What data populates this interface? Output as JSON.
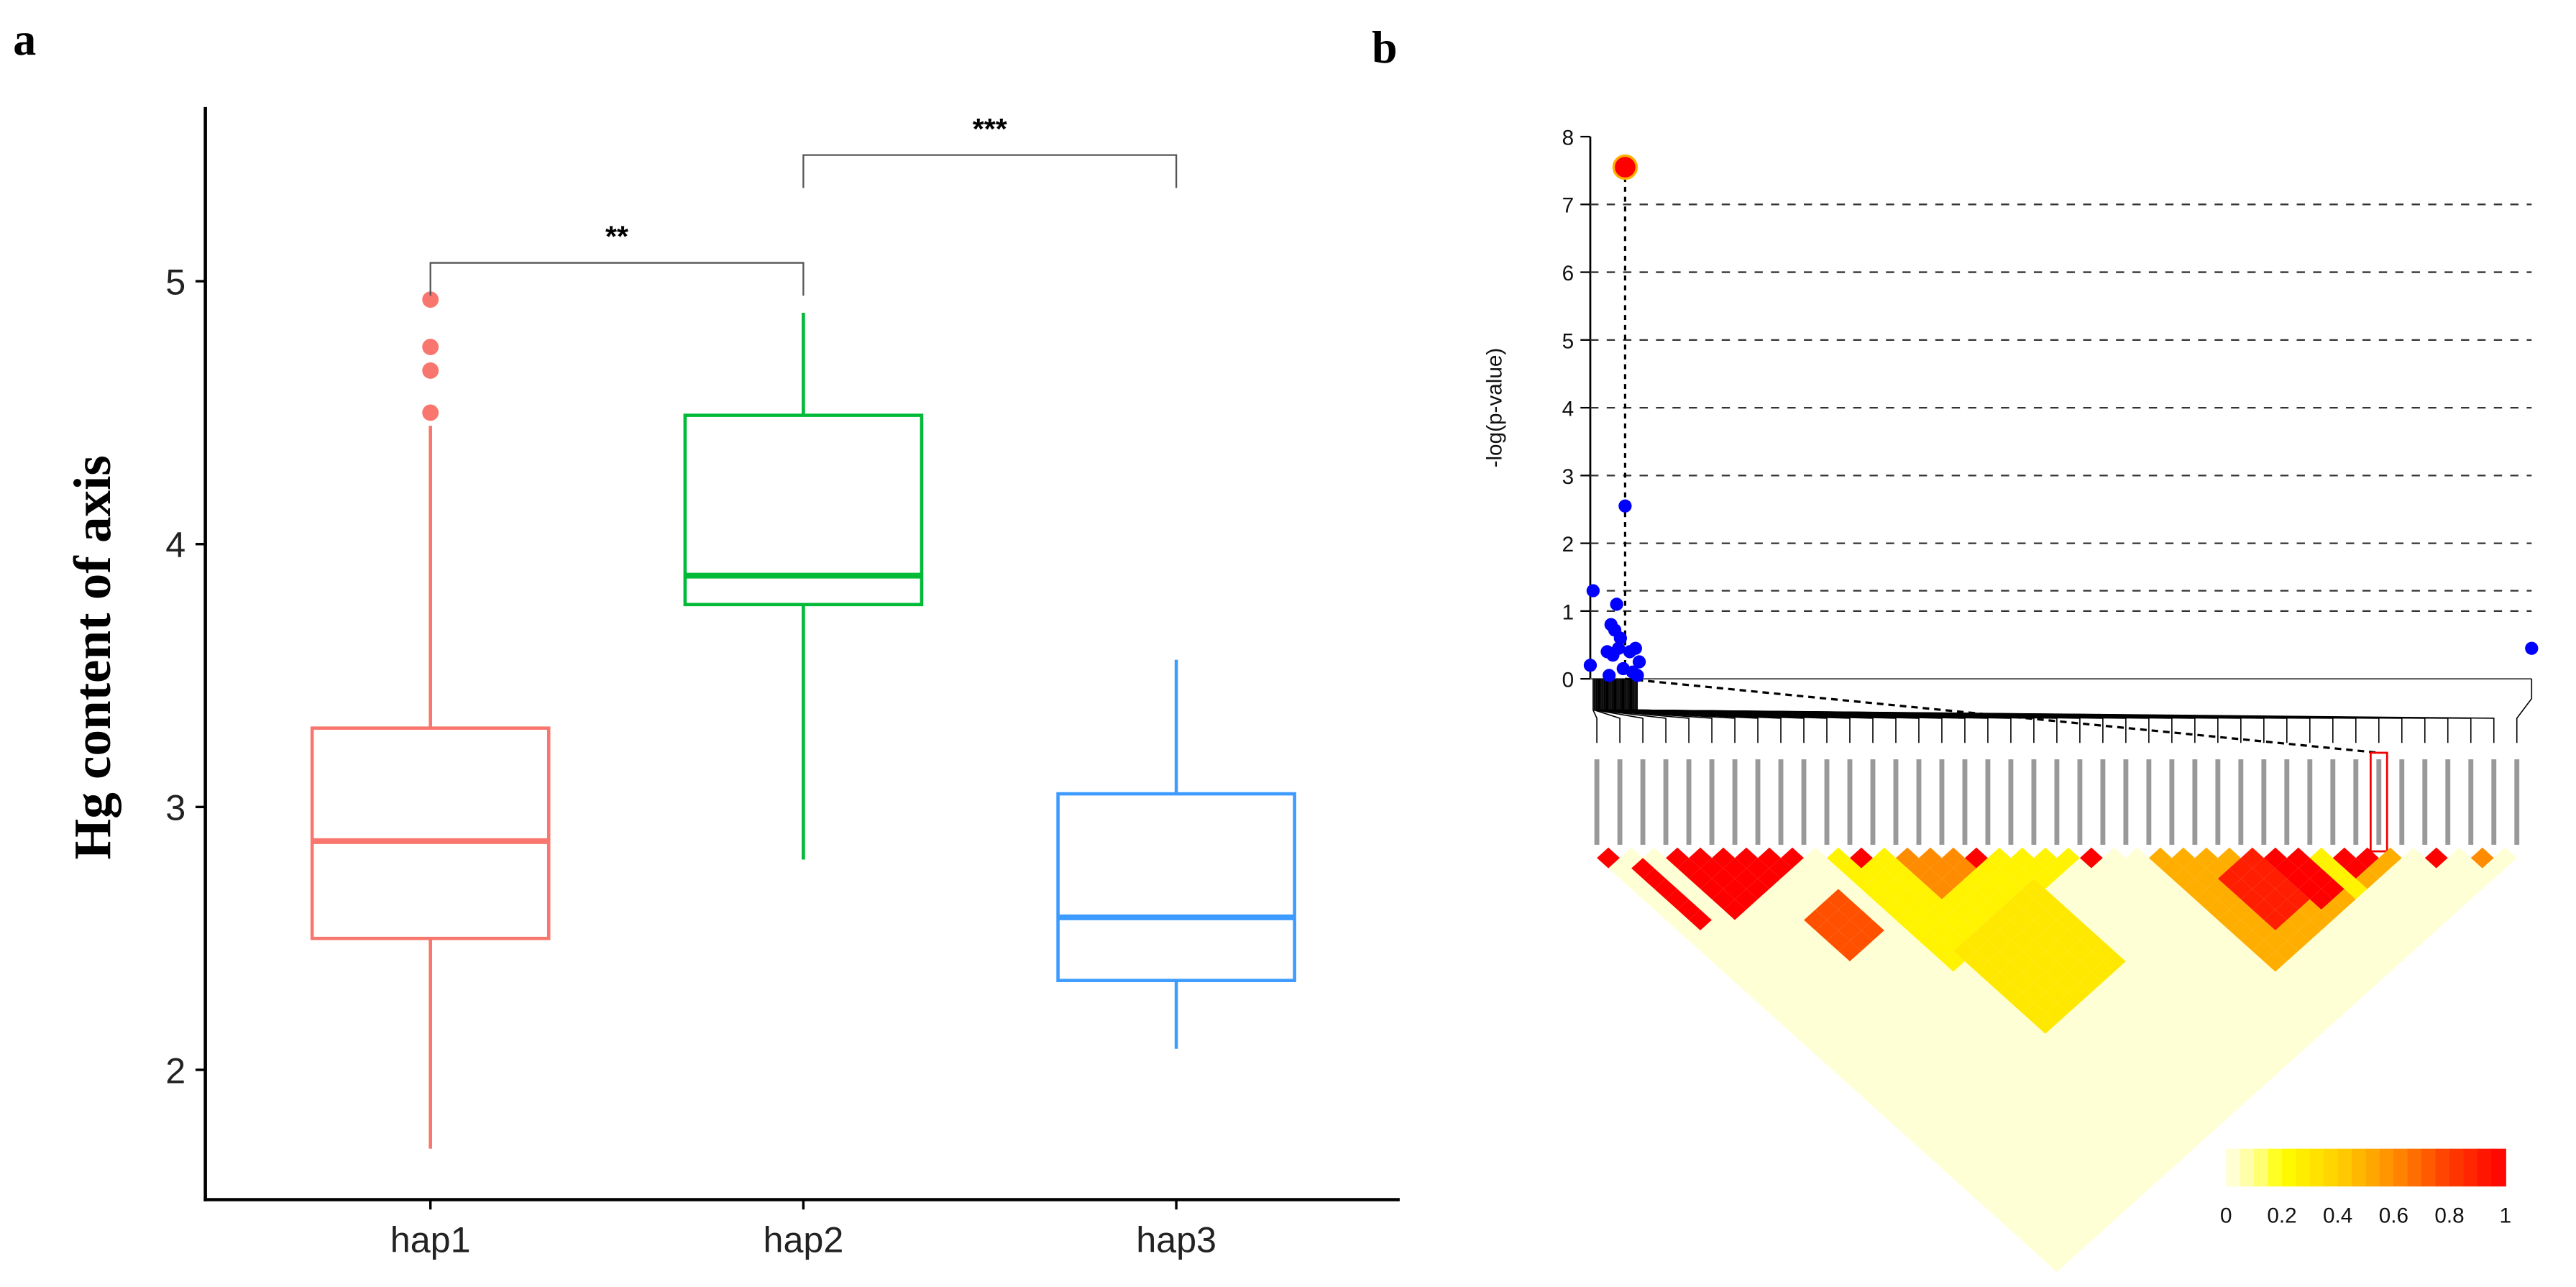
{
  "chart_data": [
    {
      "panel": "a",
      "type": "box",
      "panel_label": "a",
      "ylabel": "Hg content of axis",
      "xlabel": "",
      "ylim": [
        1.51,
        5.66
      ],
      "yticks": [
        "2",
        "3",
        "4",
        "5"
      ],
      "categories": [
        "hap1",
        "hap2",
        "hap3"
      ],
      "colors": [
        "#F8766D",
        "#00BA38",
        "#3D9BFF"
      ],
      "boxes": [
        {
          "name": "hap1",
          "min": 1.7,
          "q1": 2.5,
          "median": 2.87,
          "q3": 3.3,
          "max": 4.45,
          "outliers": [
            4.5,
            4.66,
            4.75,
            4.93
          ]
        },
        {
          "name": "hap2",
          "min": 2.8,
          "q1": 3.77,
          "median": 3.88,
          "q3": 4.49,
          "max": 4.88,
          "outliers": []
        },
        {
          "name": "hap3",
          "min": 2.08,
          "q1": 2.34,
          "median": 2.58,
          "q3": 3.05,
          "max": 3.56,
          "outliers": []
        }
      ],
      "comparisons": [
        {
          "from": "hap1",
          "to": "hap2",
          "label": "**",
          "y": 5.07
        },
        {
          "from": "hap2",
          "to": "hap3",
          "label": "***",
          "y": 5.48
        }
      ]
    },
    {
      "panel": "b",
      "type": "scatter",
      "panel_label": "b",
      "ylabel": "-log(p-value)",
      "ylim": [
        0,
        8
      ],
      "yticks": [
        "0",
        "1",
        "2",
        "3",
        "4",
        "5",
        "6",
        "7",
        "8"
      ],
      "threshold_lines": [
        1,
        1.3,
        2,
        3,
        4,
        5,
        6,
        7
      ],
      "lead_snp": {
        "pos": 3.7,
        "value": 7.55,
        "color": "#FF0000",
        "label_index": 34
      },
      "points": [
        {
          "pos": 0.0,
          "value": 0.2
        },
        {
          "pos": 0.3,
          "value": 1.3
        },
        {
          "pos": 3.7,
          "value": 2.55
        },
        {
          "pos": 2.8,
          "value": 1.1
        },
        {
          "pos": 2.2,
          "value": 0.8
        },
        {
          "pos": 2.6,
          "value": 0.72
        },
        {
          "pos": 3.2,
          "value": 0.6
        },
        {
          "pos": 1.8,
          "value": 0.4
        },
        {
          "pos": 2.4,
          "value": 0.35
        },
        {
          "pos": 3.0,
          "value": 0.45
        },
        {
          "pos": 4.2,
          "value": 0.4
        },
        {
          "pos": 4.8,
          "value": 0.45
        },
        {
          "pos": 5.2,
          "value": 0.25
        },
        {
          "pos": 4.5,
          "value": 0.1
        },
        {
          "pos": 3.5,
          "value": 0.15
        },
        {
          "pos": 2.0,
          "value": 0.05
        },
        {
          "pos": 5.0,
          "value": 0.05
        },
        {
          "pos": 100,
          "value": 0.45
        }
      ],
      "point_color": "#0000FF",
      "snp_count": 41,
      "ld_background": 0.02,
      "ld_blocks": [
        {
          "i": [
            10,
            20
          ],
          "j": [
            11,
            21
          ],
          "r2": 0.25
        },
        {
          "i": [
            11,
            17
          ],
          "j": [
            21,
            28
          ],
          "r2": 0.3
        },
        {
          "i": [
            24,
            34
          ],
          "j": [
            25,
            35
          ],
          "r2": 0.5
        },
        {
          "i": [
            0,
            0
          ],
          "j": [
            1,
            1
          ],
          "r2": 1
        },
        {
          "i": [
            1,
            1
          ],
          "j": [
            3,
            8
          ],
          "r2": 1
        },
        {
          "i": [
            3,
            8
          ],
          "j": [
            4,
            9
          ],
          "r2": 1
        },
        {
          "i": [
            11,
            11
          ],
          "j": [
            12,
            12
          ],
          "r2": 1
        },
        {
          "i": [
            13,
            15
          ],
          "j": [
            14,
            17
          ],
          "r2": 0.6
        },
        {
          "i": [
            16,
            16
          ],
          "j": [
            17,
            17
          ],
          "r2": 1
        },
        {
          "i": [
            6,
            8
          ],
          "j": [
            13,
            16
          ],
          "r2": 0.75
        },
        {
          "i": [
            21,
            21
          ],
          "j": [
            22,
            22
          ],
          "r2": 1
        },
        {
          "i": [
            26,
            28
          ],
          "j": [
            29,
            33
          ],
          "r2": 0.9
        },
        {
          "i": [
            29,
            33
          ],
          "j": [
            30,
            34
          ],
          "r2": 1
        },
        {
          "i": [
            31,
            31
          ],
          "j": [
            32,
            35
          ],
          "r2": 0.25
        },
        {
          "i": [
            36,
            36
          ],
          "j": [
            37,
            37
          ],
          "r2": 1
        },
        {
          "i": [
            38,
            38
          ],
          "j": [
            39,
            39
          ],
          "r2": 0.6
        }
      ],
      "legend": {
        "ticks": [
          "0",
          "0.2",
          "0.4",
          "0.6",
          "0.8",
          "1"
        ],
        "range": [
          0,
          1
        ]
      }
    }
  ]
}
